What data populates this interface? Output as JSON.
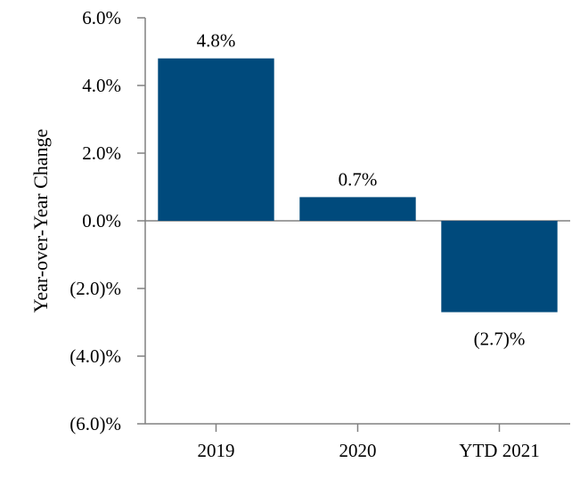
{
  "chart_data": {
    "type": "bar",
    "categories": [
      "2019",
      "2020",
      "YTD 2021"
    ],
    "values": [
      4.8,
      0.7,
      -2.7
    ],
    "data_labels": [
      "4.8%",
      "0.7%",
      "(2.7)%"
    ],
    "ylabel": "Year-over-Year Change",
    "ylim": [
      -6,
      6
    ],
    "yticks": [
      6,
      4,
      2,
      0,
      -2,
      -4,
      -6
    ],
    "ytick_labels": [
      "6.0%",
      "4.0%",
      "2.0%",
      "0.0%",
      "(2.0)%",
      "(4.0)%",
      "(6.0)%"
    ],
    "grid": false,
    "legend": "none",
    "colors": {
      "bar": "#004a7c",
      "axis": "#808080"
    }
  }
}
